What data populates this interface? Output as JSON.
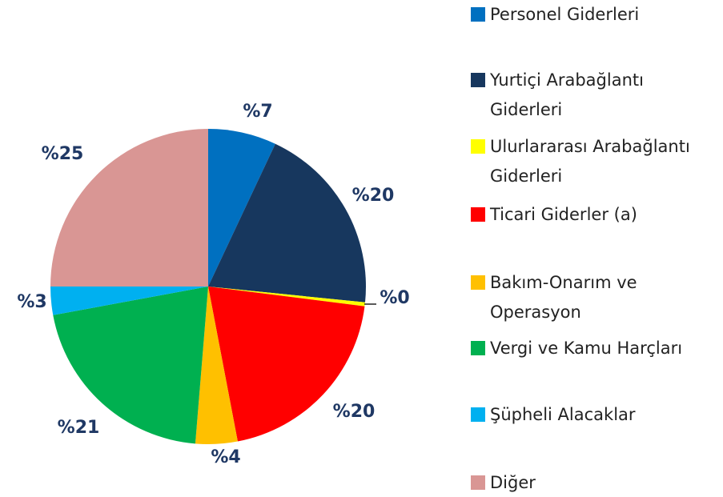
{
  "chart_data": {
    "type": "pie",
    "categories": [
      "Personel Giderleri",
      "Yurtiçi Arabağlantı Giderleri",
      "Ulurlararası Arabağlantı Giderleri",
      "Ticari Giderler (a)",
      "Bakım-Onarım ve Operasyon",
      "Vergi ve Kamu Harçları",
      "Şüpheli Alacaklar",
      "Diğer"
    ],
    "values": [
      7,
      19.6,
      0.4,
      20,
      4.3,
      20.8,
      2.9,
      25
    ],
    "value_labels": [
      "%7",
      "%20",
      "%0",
      "%20",
      "%4",
      "%21",
      "%3",
      "%25"
    ],
    "colors": [
      "#0070c0",
      "#17375e",
      "#ffff00",
      "#ff0000",
      "#ffc000",
      "#00b050",
      "#00b0f0",
      "#d99694"
    ],
    "legend": "right"
  }
}
